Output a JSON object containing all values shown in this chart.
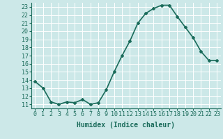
{
  "x": [
    0,
    1,
    2,
    3,
    4,
    5,
    6,
    7,
    8,
    9,
    10,
    11,
    12,
    13,
    14,
    15,
    16,
    17,
    18,
    19,
    20,
    21,
    22,
    23
  ],
  "y": [
    13.8,
    13.0,
    11.3,
    11.0,
    11.3,
    11.2,
    11.6,
    11.0,
    11.2,
    12.8,
    15.0,
    17.0,
    18.8,
    21.0,
    22.2,
    22.8,
    23.2,
    23.2,
    21.8,
    20.5,
    19.2,
    17.5,
    16.4,
    16.4
  ],
  "line_color": "#1a6b5a",
  "marker": "D",
  "marker_size": 2,
  "background_color": "#cce8e8",
  "grid_color": "#b0d8d8",
  "xlabel": "Humidex (Indice chaleur)",
  "xlabel_fontsize": 7,
  "xlim": [
    -0.5,
    23.5
  ],
  "ylim": [
    10.5,
    23.5
  ],
  "yticks": [
    11,
    12,
    13,
    14,
    15,
    16,
    17,
    18,
    19,
    20,
    21,
    22,
    23
  ],
  "xticks": [
    0,
    1,
    2,
    3,
    4,
    5,
    6,
    7,
    8,
    9,
    10,
    11,
    12,
    13,
    14,
    15,
    16,
    17,
    18,
    19,
    20,
    21,
    22,
    23
  ],
  "tick_fontsize": 6,
  "linewidth": 1.2
}
